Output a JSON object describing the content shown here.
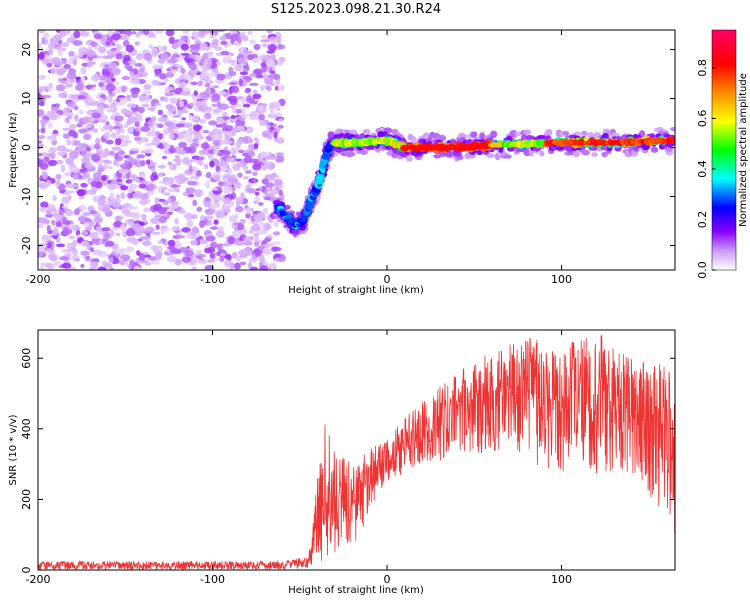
{
  "title": "S125.2023.098.21.30.R24",
  "chart_data": [
    {
      "type": "heatmap",
      "xlabel": "Height of straight line (km)",
      "ylabel": "Frequency (Hz)",
      "xlim": [
        -200,
        165
      ],
      "ylim": [
        -25,
        24
      ],
      "xticks": [
        -200,
        -100,
        0,
        100
      ],
      "yticks": [
        -20,
        -10,
        0,
        10,
        20
      ],
      "colorbar": {
        "label": "Normalized spectral amplitude",
        "range": [
          0,
          0.95
        ],
        "ticks": [
          0.0,
          0.2,
          0.4,
          0.6,
          0.8
        ],
        "colors": [
          "#ffffff",
          "#cc99ff",
          "#8800ff",
          "#0000ff",
          "#00ffff",
          "#00ff00",
          "#ffff00",
          "#ff8800",
          "#ff0000",
          "#ff0066"
        ]
      },
      "features": {
        "noise_region_x": [
          -200,
          -60
        ],
        "arc_points": [
          {
            "x": -63,
            "y": -12
          },
          {
            "x": -58,
            "y": -14
          },
          {
            "x": -53,
            "y": -16
          },
          {
            "x": -48,
            "y": -15
          },
          {
            "x": -44,
            "y": -11
          },
          {
            "x": -40,
            "y": -8
          },
          {
            "x": -36,
            "y": -3
          },
          {
            "x": -32,
            "y": 1
          }
        ],
        "ridge_points": [
          {
            "x": -30,
            "y": 1
          },
          {
            "x": -20,
            "y": 1
          },
          {
            "x": 0,
            "y": 1.5
          },
          {
            "x": 10,
            "y": 0
          },
          {
            "x": 40,
            "y": 0
          },
          {
            "x": 60,
            "y": 0.5
          },
          {
            "x": 100,
            "y": 1
          },
          {
            "x": 130,
            "y": 1
          },
          {
            "x": 165,
            "y": 1.5
          }
        ]
      }
    },
    {
      "type": "line",
      "xlabel": "Height of straight line (km)",
      "ylabel": "SNR (10 * v/v)",
      "xlim": [
        -200,
        165
      ],
      "ylim": [
        0,
        680
      ],
      "xticks": [
        -200,
        -100,
        0,
        100
      ],
      "yticks": [
        0,
        200,
        400,
        600
      ],
      "color": "#ee3333",
      "envelope": [
        {
          "x": -200,
          "lo": 0,
          "hi": 25
        },
        {
          "x": -60,
          "lo": 0,
          "hi": 25
        },
        {
          "x": -45,
          "lo": 5,
          "hi": 40
        },
        {
          "x": -36,
          "lo": 30,
          "hi": 420
        },
        {
          "x": -30,
          "lo": 50,
          "hi": 340
        },
        {
          "x": -20,
          "lo": 60,
          "hi": 300
        },
        {
          "x": -10,
          "lo": 150,
          "hi": 340
        },
        {
          "x": 0,
          "lo": 250,
          "hi": 380
        },
        {
          "x": 20,
          "lo": 300,
          "hi": 480
        },
        {
          "x": 40,
          "lo": 320,
          "hi": 560
        },
        {
          "x": 60,
          "lo": 330,
          "hi": 620
        },
        {
          "x": 80,
          "lo": 300,
          "hi": 660
        },
        {
          "x": 100,
          "lo": 280,
          "hi": 640
        },
        {
          "x": 120,
          "lo": 260,
          "hi": 680
        },
        {
          "x": 140,
          "lo": 270,
          "hi": 600
        },
        {
          "x": 160,
          "lo": 150,
          "hi": 580
        },
        {
          "x": 165,
          "lo": 80,
          "hi": 560
        }
      ]
    }
  ]
}
